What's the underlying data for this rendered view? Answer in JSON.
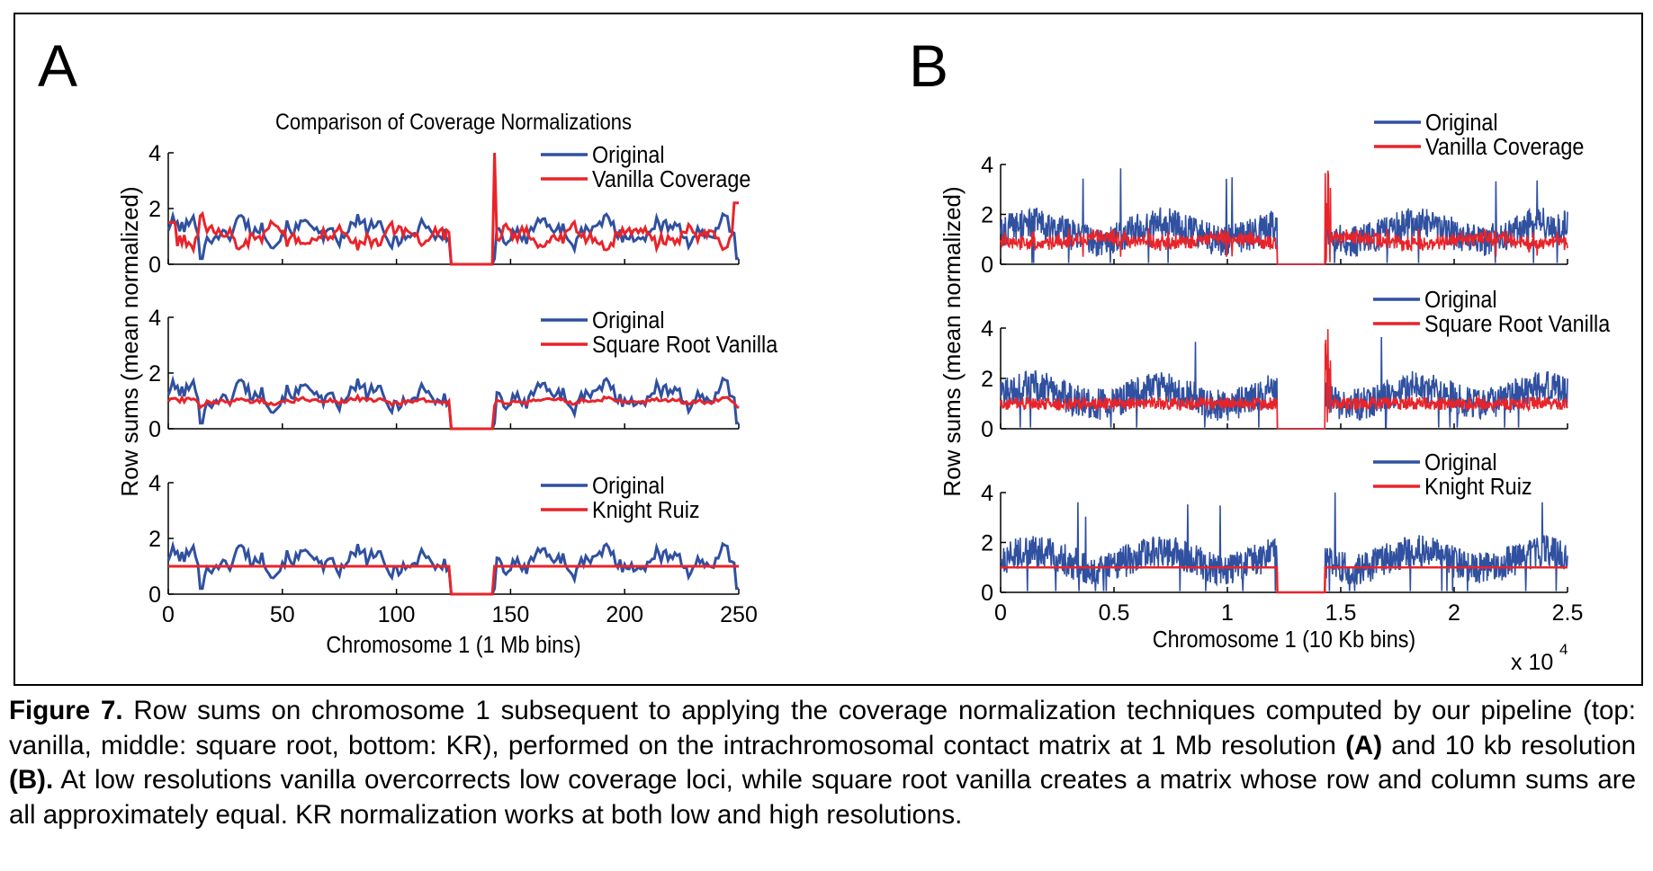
{
  "panels": {
    "a_label": "A",
    "b_label": "B"
  },
  "caption": {
    "figure_label": "Figure 7.",
    "part1": " Row sums on chromosome 1 subsequent to applying the coverage normalization techniques computed by our pipeline (top: vanilla, middle: square root, bottom: KR), performed on the intrachromosomal contact matrix at 1 Mb resolution ",
    "ref_a": "(A)",
    "part2": " and 10 kb resolution ",
    "ref_b": "(B).",
    "part3": " At low resolutions vanilla overcorrects low coverage loci, while square root vanilla creates a matrix whose row and column sums are all approximately equal. KR normalization works at both low and high resolutions."
  },
  "colors": {
    "original": "#3050A0",
    "normalized": "#E8242A"
  },
  "chart_data": [
    {
      "panel": "A",
      "type": "line",
      "title": "Comparison of Coverage Normalizations",
      "xlabel": "Chromosome 1 (1 Mb bins)",
      "ylabel": "Row sums (mean normalized)",
      "xlim": [
        0,
        250
      ],
      "xticks": [
        "0",
        "50",
        "100",
        "150",
        "200",
        "250"
      ],
      "gap_bins": [
        124,
        142
      ],
      "subplots": [
        {
          "ylim": [
            0,
            4
          ],
          "yticks": [
            "0",
            "2",
            "4"
          ],
          "legend": [
            "Original",
            "Vanilla Coverage"
          ],
          "series": [
            {
              "name": "Original",
              "mean": 1.2
            },
            {
              "name": "Vanilla Coverage",
              "mean": 0.95,
              "spike_at": 143,
              "spike_value": 4
            }
          ]
        },
        {
          "ylim": [
            0,
            4
          ],
          "yticks": [
            "0",
            "2",
            "4"
          ],
          "legend": [
            "Original",
            "Square Root Vanilla"
          ],
          "series": [
            {
              "name": "Original",
              "mean": 1.2
            },
            {
              "name": "Square Root Vanilla",
              "mean": 1.0
            }
          ]
        },
        {
          "ylim": [
            0,
            4
          ],
          "yticks": [
            "0",
            "2",
            "4"
          ],
          "legend": [
            "Original",
            "Knight Ruiz"
          ],
          "series": [
            {
              "name": "Original",
              "mean": 1.2
            },
            {
              "name": "Knight Ruiz",
              "value": 1.0
            }
          ]
        }
      ]
    },
    {
      "panel": "B",
      "type": "line",
      "xlabel": "Chromosome 1 (10 Kb bins)",
      "ylabel": "Row sums (mean normalized)",
      "xlim": [
        0,
        25000
      ],
      "xticks": [
        "0",
        "0.5",
        "1",
        "1.5",
        "2",
        "2.5"
      ],
      "x_multiplier_base": "x 10",
      "x_multiplier_exp": "4",
      "gap_bins": [
        12200,
        14300
      ],
      "subplots": [
        {
          "ylim": [
            0,
            4
          ],
          "yticks": [
            "0",
            "2",
            "4"
          ],
          "legend": [
            "Original",
            "Vanilla Coverage"
          ],
          "series": [
            {
              "name": "Original",
              "mean": 1.3
            },
            {
              "name": "Vanilla Coverage",
              "mean": 0.95
            }
          ]
        },
        {
          "ylim": [
            0,
            4
          ],
          "yticks": [
            "0",
            "2",
            "4"
          ],
          "legend": [
            "Original",
            "Square Root Vanilla"
          ],
          "series": [
            {
              "name": "Original",
              "mean": 1.3
            },
            {
              "name": "Square Root Vanilla",
              "mean": 1.0
            }
          ]
        },
        {
          "ylim": [
            0,
            4
          ],
          "yticks": [
            "0",
            "2",
            "4"
          ],
          "legend": [
            "Original",
            "Knight Ruiz"
          ],
          "series": [
            {
              "name": "Original",
              "mean": 1.3
            },
            {
              "name": "Knight Ruiz",
              "value": 1.0
            }
          ]
        }
      ]
    }
  ]
}
